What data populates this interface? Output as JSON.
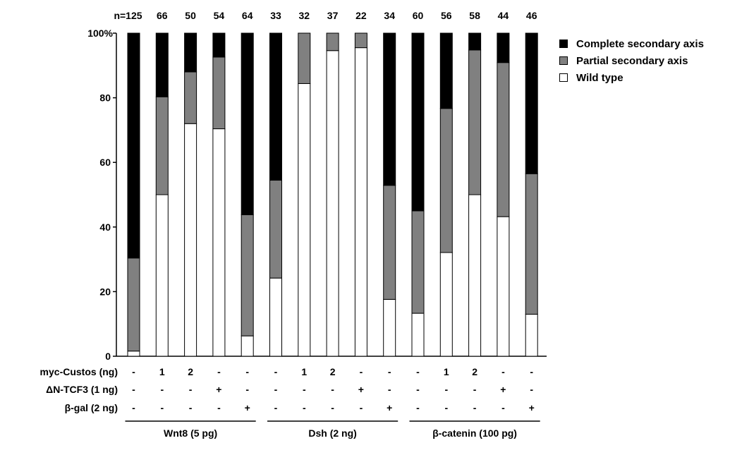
{
  "chart_data": {
    "type": "bar",
    "stacked": true,
    "y_axis_label": "100%",
    "ytick_labels": [
      "0",
      "20",
      "40",
      "60",
      "80"
    ],
    "ylim": [
      0,
      100
    ],
    "grid": false,
    "legend_position": "top-right",
    "n_labels": [
      "n=125",
      "66",
      "50",
      "54",
      "64",
      "33",
      "32",
      "37",
      "22",
      "34",
      "60",
      "56",
      "58",
      "44",
      "46"
    ],
    "series": [
      {
        "name": "Wild type",
        "color": "#ffffff",
        "values": [
          1.6,
          50.0,
          72.0,
          70.4,
          6.3,
          24.2,
          84.4,
          94.6,
          95.5,
          17.6,
          13.3,
          32.1,
          50.0,
          43.2,
          13.0
        ]
      },
      {
        "name": "Partial secondary axis",
        "color": "#808080",
        "values": [
          28.8,
          30.3,
          16.0,
          22.2,
          37.5,
          30.3,
          15.6,
          5.4,
          4.5,
          35.3,
          31.7,
          44.6,
          44.8,
          47.7,
          43.5
        ]
      },
      {
        "name": "Complete secondary axis",
        "color": "#000000",
        "values": [
          69.6,
          19.7,
          12.0,
          7.4,
          56.2,
          45.5,
          0.0,
          0.0,
          0.0,
          47.1,
          55.0,
          23.3,
          5.2,
          9.1,
          43.5
        ]
      }
    ],
    "conditions": [
      {
        "label": "myc-Custos (ng)",
        "values": [
          "-",
          "1",
          "2",
          "-",
          "-",
          "-",
          "1",
          "2",
          "-",
          "-",
          "-",
          "1",
          "2",
          "-",
          "-"
        ]
      },
      {
        "label": "ΔN-TCF3 (1 ng)",
        "values": [
          "-",
          "-",
          "-",
          "+",
          "-",
          "-",
          "-",
          "-",
          "+",
          "-",
          "-",
          "-",
          "-",
          "+",
          "-"
        ]
      },
      {
        "label": "β-gal (2 ng)",
        "values": [
          "-",
          "-",
          "-",
          "-",
          "+",
          "-",
          "-",
          "-",
          "-",
          "+",
          "-",
          "-",
          "-",
          "-",
          "+"
        ]
      }
    ],
    "groups": [
      {
        "label": "Wnt8 (5 pg)",
        "bars": [
          0,
          4
        ]
      },
      {
        "label": "Dsh (2 ng)",
        "bars": [
          5,
          9
        ]
      },
      {
        "label": "β-catenin (100 pg)",
        "bars": [
          10,
          14
        ]
      }
    ]
  }
}
